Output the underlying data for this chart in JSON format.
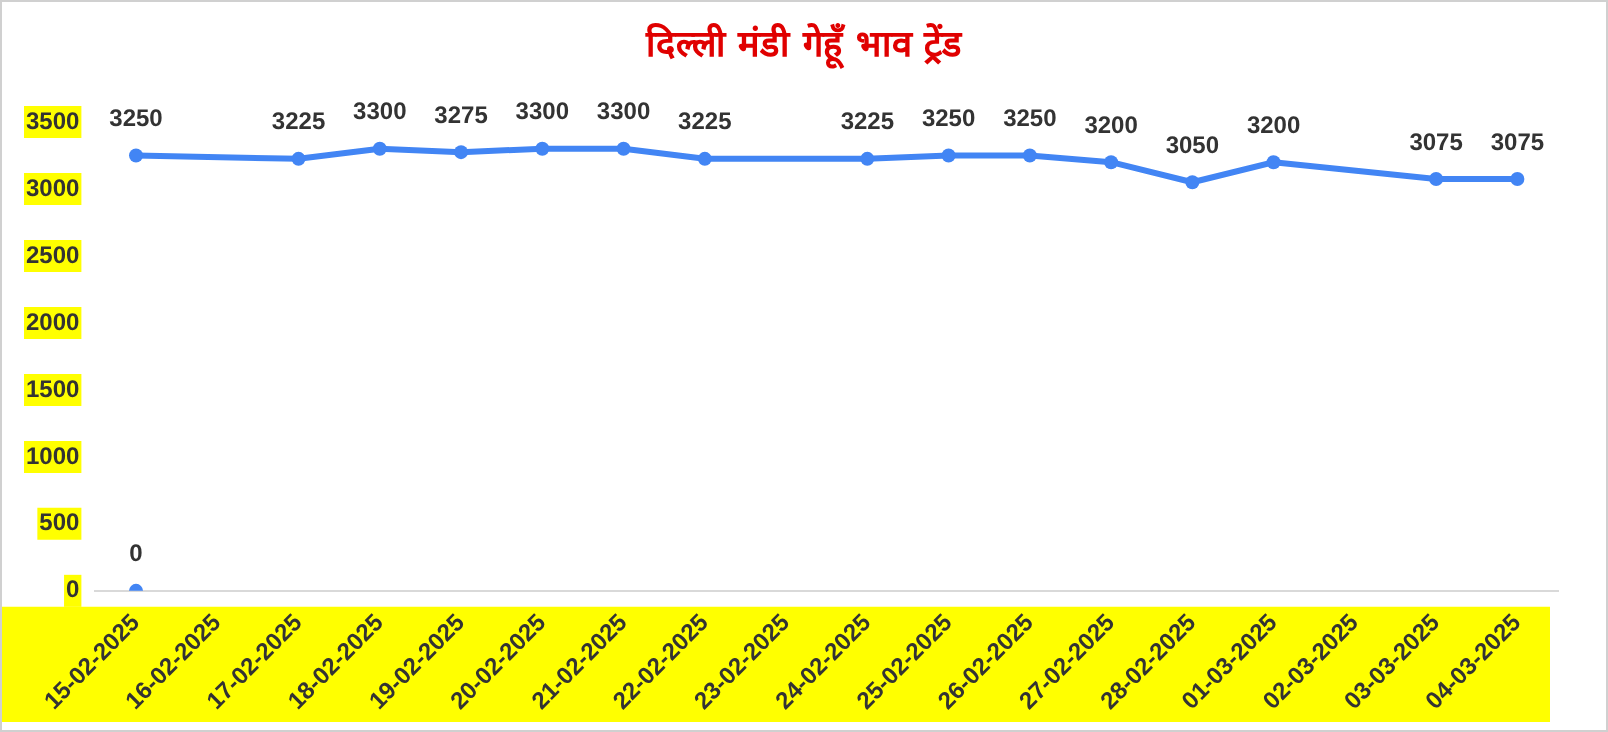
{
  "chart_data": {
    "type": "line",
    "title": "दिल्ली मंडी गेहूँ भाव ट्रेंड",
    "categories": [
      "15-02-2025",
      "16-02-2025",
      "17-02-2025",
      "18-02-2025",
      "19-02-2025",
      "20-02-2025",
      "21-02-2025",
      "22-02-2025",
      "23-02-2025",
      "24-02-2025",
      "25-02-2025",
      "26-02-2025",
      "27-02-2025",
      "28-02-2025",
      "01-03-2025",
      "02-03-2025",
      "03-03-2025",
      "04-03-2025"
    ],
    "series": [
      {
        "type": "line",
        "color": "#4285f4",
        "values": [
          3250,
          null,
          3225,
          3300,
          3275,
          3300,
          3300,
          3225,
          null,
          3225,
          3250,
          3250,
          3200,
          3050,
          3200,
          null,
          3075,
          3075
        ]
      },
      {
        "type": "scatter",
        "color": "#4285f4",
        "values": [
          0,
          null,
          null,
          null,
          null,
          null,
          null,
          null,
          null,
          null,
          null,
          null,
          null,
          null,
          null,
          null,
          null,
          null
        ]
      }
    ],
    "ylim": [
      0,
      3500
    ],
    "yticks": [
      0,
      500,
      1000,
      1500,
      2000,
      2500,
      3000,
      3500
    ],
    "grid": false,
    "legend": false,
    "marker": "circle",
    "line_style": "solid",
    "data_labels": true
  }
}
